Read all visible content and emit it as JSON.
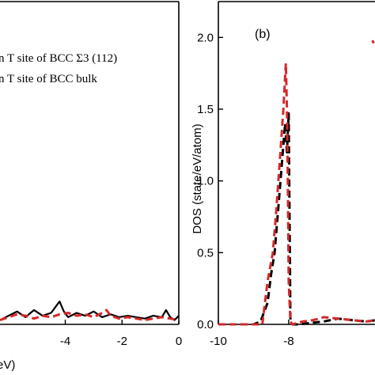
{
  "chart_data": [
    {
      "panel": "a",
      "type": "line",
      "title": "",
      "xlabel": "eV)",
      "ylabel": "",
      "xlim": [
        -6.3,
        0
      ],
      "ylim": [
        0,
        2.25
      ],
      "x_ticks": [
        -4,
        -2,
        0
      ],
      "x_tick_labels": [
        "-4",
        "-2",
        "0"
      ],
      "legend": {
        "placement": "top-left",
        "entries": [
          "n T site of BCC Σ3 (112)",
          "n T site of BCC bulk"
        ]
      },
      "series": [
        {
          "name": "n T site of BCC bulk",
          "color": "#000000",
          "style": "solid",
          "x": [
            -6.3,
            -6.0,
            -5.7,
            -5.4,
            -5.1,
            -4.8,
            -4.5,
            -4.35,
            -4.2,
            -4.05,
            -3.9,
            -3.6,
            -3.3,
            -3.0,
            -2.7,
            -2.4,
            -2.1,
            -1.8,
            -1.5,
            -1.2,
            -0.9,
            -0.6,
            -0.45,
            -0.3,
            -0.15,
            0.0
          ],
          "y": [
            0.03,
            0.06,
            0.09,
            0.05,
            0.1,
            0.06,
            0.08,
            0.12,
            0.16,
            0.09,
            0.05,
            0.08,
            0.06,
            0.09,
            0.05,
            0.07,
            0.05,
            0.06,
            0.05,
            0.04,
            0.06,
            0.05,
            0.1,
            0.05,
            0.03,
            0.06
          ]
        },
        {
          "name": "n T site of BCC Σ3 (112)",
          "color": "#d62728",
          "style": "dashed",
          "x": [
            -6.3,
            -6.0,
            -5.7,
            -5.4,
            -5.1,
            -4.8,
            -4.5,
            -4.2,
            -3.9,
            -3.6,
            -3.3,
            -3.0,
            -2.7,
            -2.55,
            -2.4,
            -2.1,
            -1.8,
            -1.5,
            -1.2,
            -0.9,
            -0.6,
            -0.3,
            0.0
          ],
          "y": [
            0.03,
            0.05,
            0.07,
            0.06,
            0.04,
            0.06,
            0.05,
            0.07,
            0.08,
            0.06,
            0.07,
            0.05,
            0.08,
            0.1,
            0.06,
            0.04,
            0.05,
            0.04,
            0.03,
            0.04,
            0.05,
            0.04,
            0.03
          ]
        }
      ]
    },
    {
      "panel": "b",
      "type": "line",
      "title": "",
      "xlabel": "",
      "ylabel": "DOS (state/eV/atom)",
      "xlim": [
        -10,
        -5.5
      ],
      "ylim": [
        0,
        2.25
      ],
      "y_ticks": [
        0,
        0.5,
        1.0,
        1.5,
        2.0
      ],
      "y_tick_labels": [
        "0.0",
        "0.5",
        "1.0",
        "1.5",
        "2.0"
      ],
      "x_ticks": [
        -10,
        -8
      ],
      "x_tick_labels": [
        "-10",
        "-8"
      ],
      "annotation": "(b)",
      "series": [
        {
          "name": "",
          "color": "#000000",
          "style": "dashed",
          "x": [
            -10.0,
            -9.5,
            -9.0,
            -8.8,
            -8.6,
            -8.5,
            -8.4,
            -8.3,
            -8.2,
            -8.1,
            -8.05,
            -8.0,
            -7.97,
            -7.95,
            -7.9,
            -7.7,
            -7.4,
            -7.0,
            -6.6,
            -6.2,
            -5.8,
            -5.5
          ],
          "y": [
            0.0,
            0.0,
            0.0,
            0.02,
            0.15,
            0.35,
            0.5,
            0.8,
            1.1,
            1.4,
            1.2,
            1.47,
            0.6,
            0.02,
            0.0,
            0.0,
            0.01,
            0.02,
            0.04,
            0.03,
            0.02,
            0.03
          ]
        },
        {
          "name": "",
          "color": "#d62728",
          "style": "dashed",
          "x": [
            -10.0,
            -9.5,
            -9.0,
            -8.75,
            -8.6,
            -8.45,
            -8.35,
            -8.25,
            -8.15,
            -8.08,
            -8.05,
            -8.02,
            -8.0,
            -7.95,
            -7.9,
            -7.6,
            -7.3,
            -7.0,
            -6.6,
            -6.2,
            -5.8,
            -5.5
          ],
          "y": [
            0.0,
            0.0,
            0.0,
            0.0,
            0.3,
            0.5,
            0.8,
            1.15,
            1.5,
            1.82,
            1.5,
            0.9,
            0.3,
            0.02,
            0.0,
            0.02,
            0.03,
            0.05,
            0.04,
            0.03,
            0.02,
            0.03
          ]
        },
        {
          "name": "",
          "color": "#d62728",
          "style": "dashed",
          "x": [
            -5.62,
            -5.58
          ],
          "y": [
            1.98,
            1.96
          ]
        }
      ]
    }
  ]
}
